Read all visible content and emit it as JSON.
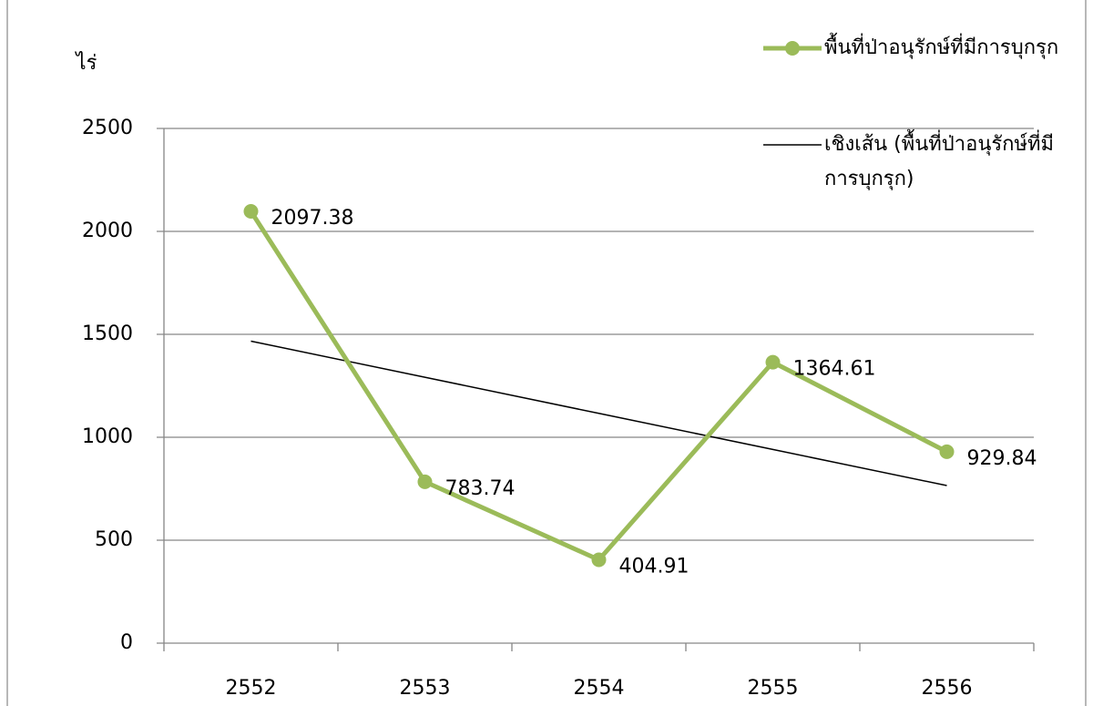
{
  "chart_data": {
    "type": "line",
    "y_label": "ไร่",
    "categories": [
      "2552",
      "2553",
      "2554",
      "2555",
      "2556"
    ],
    "series": [
      {
        "name": "พื้นที่ป่าอนุรักษ์ที่มีการบุกรุก",
        "color": "#9bbb59",
        "values": [
          2097.38,
          783.74,
          404.91,
          1364.61,
          929.84
        ]
      },
      {
        "name": "เชิงเส้น (พื้นที่ป่าอนุรักษ์ที่มีการบุกรุก)",
        "color": "#000000",
        "values": [
          1466.9,
          1291.5,
          1116.1,
          940.7,
          765.3
        ]
      }
    ],
    "ylim": [
      0,
      2500
    ],
    "yticks": [
      0,
      500,
      1000,
      1500,
      2000,
      2500
    ],
    "grid": true,
    "legend": "top-right"
  }
}
